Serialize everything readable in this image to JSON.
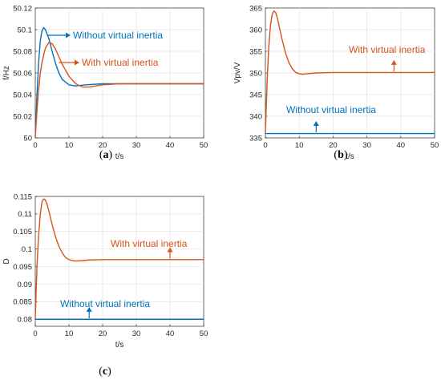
{
  "colors": {
    "blue": "#0072BD",
    "orange": "#D95319"
  },
  "chart_data": [
    {
      "id": "a",
      "type": "line",
      "caption": "a",
      "xlabel": "t/s",
      "ylabel": "f/Hz",
      "xlim": [
        0,
        50
      ],
      "ylim": [
        50,
        50.12
      ],
      "xticks": [
        0,
        10,
        20,
        30,
        40,
        50
      ],
      "yticks": [
        50,
        50.02,
        50.04,
        50.06,
        50.08,
        50.1,
        50.12
      ],
      "ytick_labels": [
        "50",
        "50.02",
        "50.04",
        "50.06",
        "50.08",
        "50.1",
        "50.12"
      ],
      "series": [
        {
          "name": "Without virtual inertia",
          "color": "#0072BD",
          "x": [
            0,
            0.5,
            1,
            1.5,
            2,
            2.5,
            3,
            4,
            5,
            6,
            7,
            8,
            10,
            12,
            15,
            20,
            25,
            30,
            40,
            50
          ],
          "y": [
            50,
            50.04,
            50.07,
            50.09,
            50.099,
            50.102,
            50.1,
            50.092,
            50.08,
            50.069,
            50.06,
            50.054,
            50.049,
            50.048,
            50.049,
            50.05,
            50.05,
            50.05,
            50.05,
            50.05
          ]
        },
        {
          "name": "With virtual inertia",
          "color": "#D95319",
          "x": [
            0,
            0.5,
            1,
            1.5,
            2,
            3,
            4,
            5,
            6,
            7,
            8,
            10,
            12,
            14,
            16,
            18,
            20,
            25,
            30,
            40,
            50
          ],
          "y": [
            50,
            50.025,
            50.045,
            50.06,
            50.07,
            50.083,
            50.088,
            50.087,
            50.082,
            50.075,
            50.068,
            50.057,
            50.05,
            50.047,
            50.047,
            50.048,
            50.049,
            50.05,
            50.05,
            50.05,
            50.05
          ]
        }
      ],
      "annotations": [
        {
          "text": "Without virtual inertia",
          "color": "#0072BD",
          "arrow": "right",
          "x": 3.5,
          "y": 50.1
        },
        {
          "text": "With virtual inertia",
          "color": "#D95319",
          "arrow": "right",
          "x": 7,
          "y": 50.084
        }
      ]
    },
    {
      "id": "b",
      "type": "line",
      "caption": "b",
      "xlabel": "t/s",
      "ylabel": "Vpv/V",
      "xlim": [
        0,
        50
      ],
      "ylim": [
        335,
        365
      ],
      "xticks": [
        0,
        10,
        20,
        30,
        40,
        50
      ],
      "yticks": [
        335,
        340,
        345,
        350,
        355,
        360,
        365
      ],
      "ytick_labels": [
        "335",
        "340",
        "345",
        "350",
        "355",
        "360",
        "365"
      ],
      "series": [
        {
          "name": "With virtual inertia",
          "color": "#D95319",
          "x": [
            0,
            0.5,
            1,
            1.5,
            2,
            2.5,
            3,
            3.5,
            4,
            5,
            6,
            7,
            8,
            9,
            10,
            11,
            12,
            15,
            20,
            30,
            40,
            50
          ],
          "y": [
            336,
            348,
            356,
            361,
            363.5,
            364.3,
            364,
            362.8,
            361,
            357.5,
            354.5,
            352.3,
            350.9,
            350.1,
            349.8,
            349.7,
            349.8,
            350,
            350.1,
            350.1,
            350.1,
            350.1
          ]
        },
        {
          "name": "Without virtual inertia",
          "color": "#0072BD",
          "x": [
            0,
            50
          ],
          "y": [
            336,
            336
          ]
        }
      ],
      "annotations": [
        {
          "text": "With virtual inertia",
          "color": "#D95319",
          "arrow": "up",
          "x": 38,
          "y": 350.4
        },
        {
          "text": "Without virtual inertia",
          "color": "#0072BD",
          "arrow": "up",
          "x": 15,
          "y": 336.3
        }
      ]
    },
    {
      "id": "c",
      "type": "line",
      "caption": "c",
      "xlabel": "t/s",
      "ylabel": "D",
      "xlim": [
        0,
        50
      ],
      "ylim": [
        0.078,
        0.115
      ],
      "xticks": [
        0,
        10,
        20,
        30,
        40,
        50
      ],
      "yticks": [
        0.08,
        0.085,
        0.09,
        0.095,
        0.1,
        0.105,
        0.11,
        0.115
      ],
      "ytick_labels": [
        "0.08",
        "0.085",
        "0.09",
        "0.095",
        "0.1",
        "0.105",
        "0.11",
        "0.115"
      ],
      "series": [
        {
          "name": "With virtual inertia",
          "color": "#D95319",
          "x": [
            0,
            0.5,
            1,
            1.5,
            2,
            2.5,
            3,
            3.5,
            4,
            5,
            6,
            7,
            8,
            9,
            10,
            11,
            12,
            14,
            16,
            20,
            30,
            40,
            50
          ],
          "y": [
            0.08,
            0.095,
            0.104,
            0.11,
            0.1135,
            0.1143,
            0.114,
            0.1128,
            0.111,
            0.107,
            0.1035,
            0.1008,
            0.0989,
            0.0976,
            0.097,
            0.0967,
            0.0966,
            0.0967,
            0.0969,
            0.097,
            0.097,
            0.097,
            0.097
          ]
        },
        {
          "name": "Without virtual inertia",
          "color": "#0072BD",
          "x": [
            0,
            50
          ],
          "y": [
            0.08,
            0.08
          ]
        }
      ],
      "annotations": [
        {
          "text": "With virtual inertia",
          "color": "#D95319",
          "arrow": "up",
          "x": 40,
          "y": 0.0973
        },
        {
          "text": "Without virtual inertia",
          "color": "#0072BD",
          "arrow": "up",
          "x": 16,
          "y": 0.0803
        }
      ]
    }
  ]
}
